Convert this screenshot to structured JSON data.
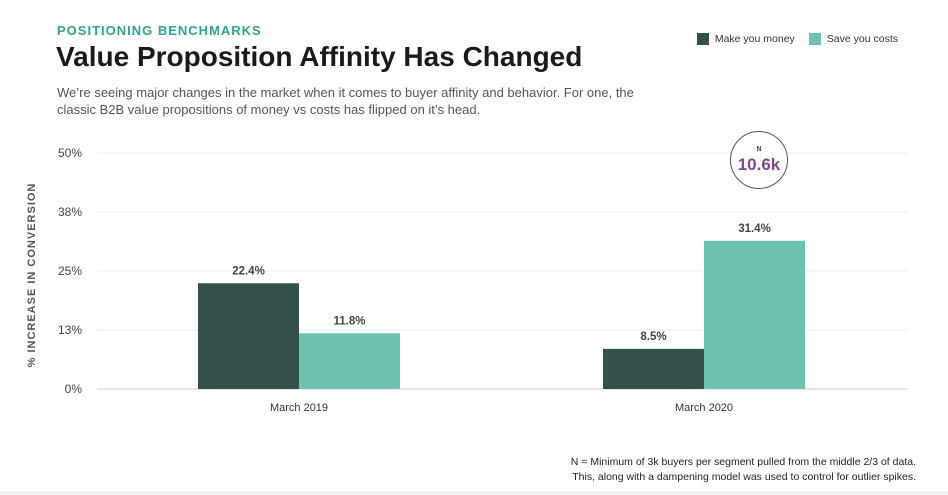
{
  "header": {
    "eyebrow": "POSITIONING BENCHMARKS",
    "title": "Value Proposition Affinity Has Changed",
    "subtitle": "We’re seeing major changes in the market when it comes to buyer affinity and behavior. For one, the classic B2B value propositions of money vs costs has flipped on it’s head."
  },
  "badge": {
    "label": "N",
    "value": "10.6k"
  },
  "footnote": {
    "line1": "N = Minimum of 3k buyers per segment pulled from the middle 2/3 of data.",
    "line2": "This, along with a dampening model was used to control for outlier spikes."
  },
  "colors": {
    "accent": "#2fa58d",
    "money": "#33514a",
    "costs": "#6fc2b0",
    "badge_value": "#7e4a8f"
  },
  "chart_data": {
    "type": "bar",
    "categories": [
      "March 2019",
      "March 2020"
    ],
    "series": [
      {
        "name": "Make you money",
        "values": [
          22.4,
          8.5
        ],
        "labels": [
          "22.4%",
          "8.5%"
        ],
        "color": "#33514a"
      },
      {
        "name": "Save you costs",
        "values": [
          11.8,
          31.4
        ],
        "labels": [
          "11.8%",
          "31.4%"
        ],
        "color": "#6fc2b0"
      }
    ],
    "ylabel": "% INCREASE IN CONVERSION",
    "ylim": [
      0,
      50
    ],
    "yticks": [
      0,
      12.5,
      25,
      37.5,
      50
    ],
    "ytick_labels": [
      "0%",
      "13%",
      "25%",
      "38%",
      "50%"
    ],
    "grid": true,
    "legend_position": "top-right"
  }
}
